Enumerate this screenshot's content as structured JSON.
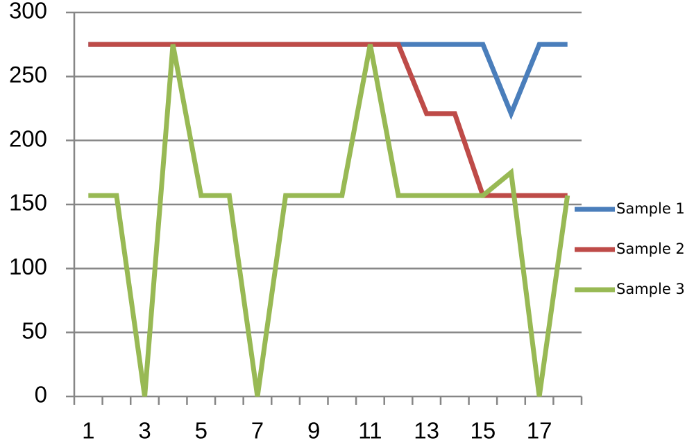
{
  "chart_data": {
    "type": "line",
    "categories": [
      "1",
      null,
      "3",
      null,
      "5",
      null,
      "7",
      null,
      "9",
      null,
      "11",
      null,
      "13",
      null,
      "15",
      null,
      "17",
      null
    ],
    "series": [
      {
        "name": "Sample 1",
        "color": "#4a7ebb",
        "values": [
          275,
          275,
          275,
          275,
          275,
          275,
          275,
          275,
          275,
          275,
          275,
          275,
          275,
          275,
          275,
          221,
          275,
          275
        ]
      },
      {
        "name": "Sample 2",
        "color": "#be4b48",
        "values": [
          275,
          275,
          275,
          275,
          275,
          275,
          275,
          275,
          275,
          275,
          275,
          275,
          221,
          221,
          157,
          157,
          157,
          157
        ]
      },
      {
        "name": "Sample 3",
        "color": "#98b954",
        "values": [
          157,
          157,
          0,
          275,
          157,
          157,
          0,
          157,
          157,
          157,
          275,
          157,
          157,
          157,
          157,
          175,
          0,
          157
        ]
      }
    ],
    "ylim": [
      0,
      300
    ],
    "yticks": [
      0,
      50,
      100,
      150,
      200,
      250,
      300
    ],
    "grid": true,
    "legend": "right"
  }
}
